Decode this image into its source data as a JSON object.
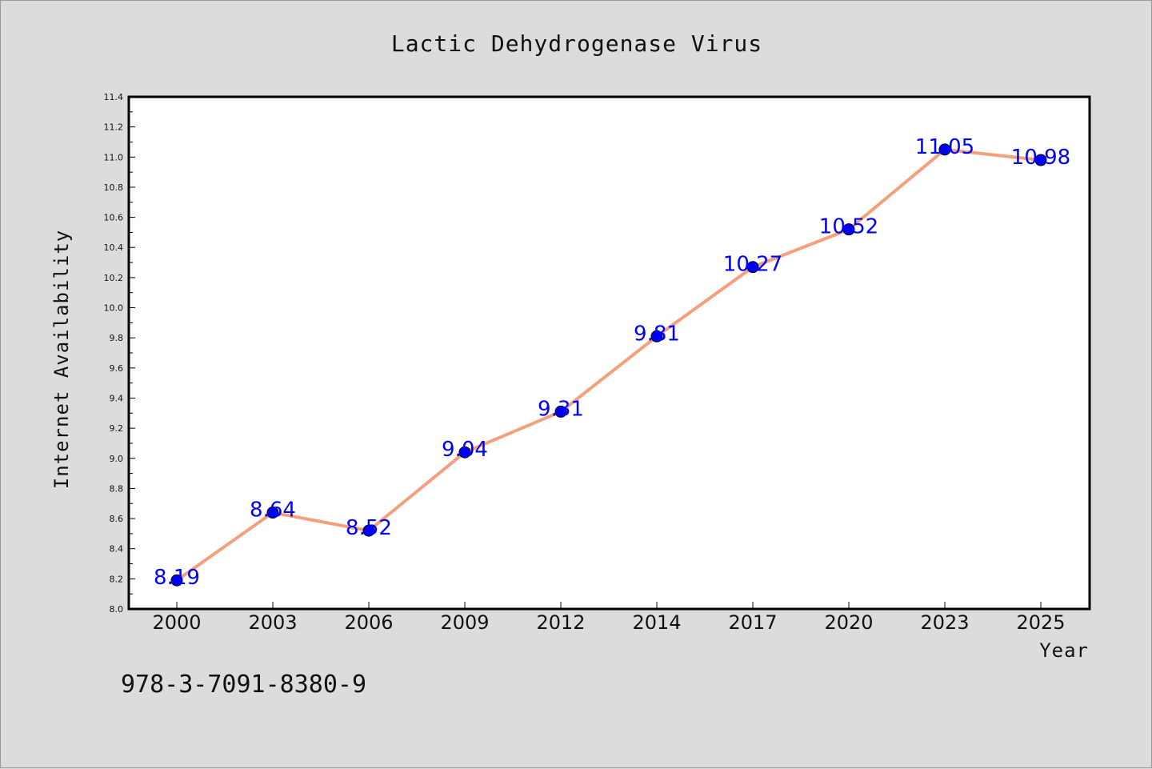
{
  "chart_data": {
    "type": "line",
    "title": "Lactic Dehydrogenase Virus",
    "xlabel": "Year",
    "ylabel": "Internet Availability",
    "categories": [
      "2000",
      "2003",
      "2006",
      "2009",
      "2012",
      "2014",
      "2017",
      "2020",
      "2023",
      "2025"
    ],
    "series": [
      {
        "values": [
          8.19,
          8.64,
          8.52,
          9.04,
          9.31,
          9.81,
          10.27,
          10.52,
          11.05,
          10.98
        ],
        "labels": [
          "8.19",
          "8.64",
          "8.52",
          "9.04",
          "9.31",
          "9.81",
          "10.27",
          "10.52",
          "11.05",
          "10.98"
        ],
        "line_color": "#f4a07c",
        "marker_color": "#0000ff"
      }
    ],
    "ylim": [
      8.0,
      11.4
    ],
    "yticks": [
      "8.0",
      "8.2",
      "8.4",
      "8.6",
      "8.8",
      "9.0",
      "9.2",
      "9.4",
      "9.6",
      "9.8",
      "10.0",
      "10.2",
      "10.4",
      "10.6",
      "10.8",
      "11.0",
      "11.2",
      "11.4"
    ],
    "grid": false,
    "legend": "none"
  },
  "footer_text": "978-3-7091-8380-9",
  "colors": {
    "background": "#dcdcdc",
    "plot_background": "#ffffff",
    "line": "#f4a07c",
    "marker": "#0000ff",
    "data_label": "#0000ff"
  }
}
